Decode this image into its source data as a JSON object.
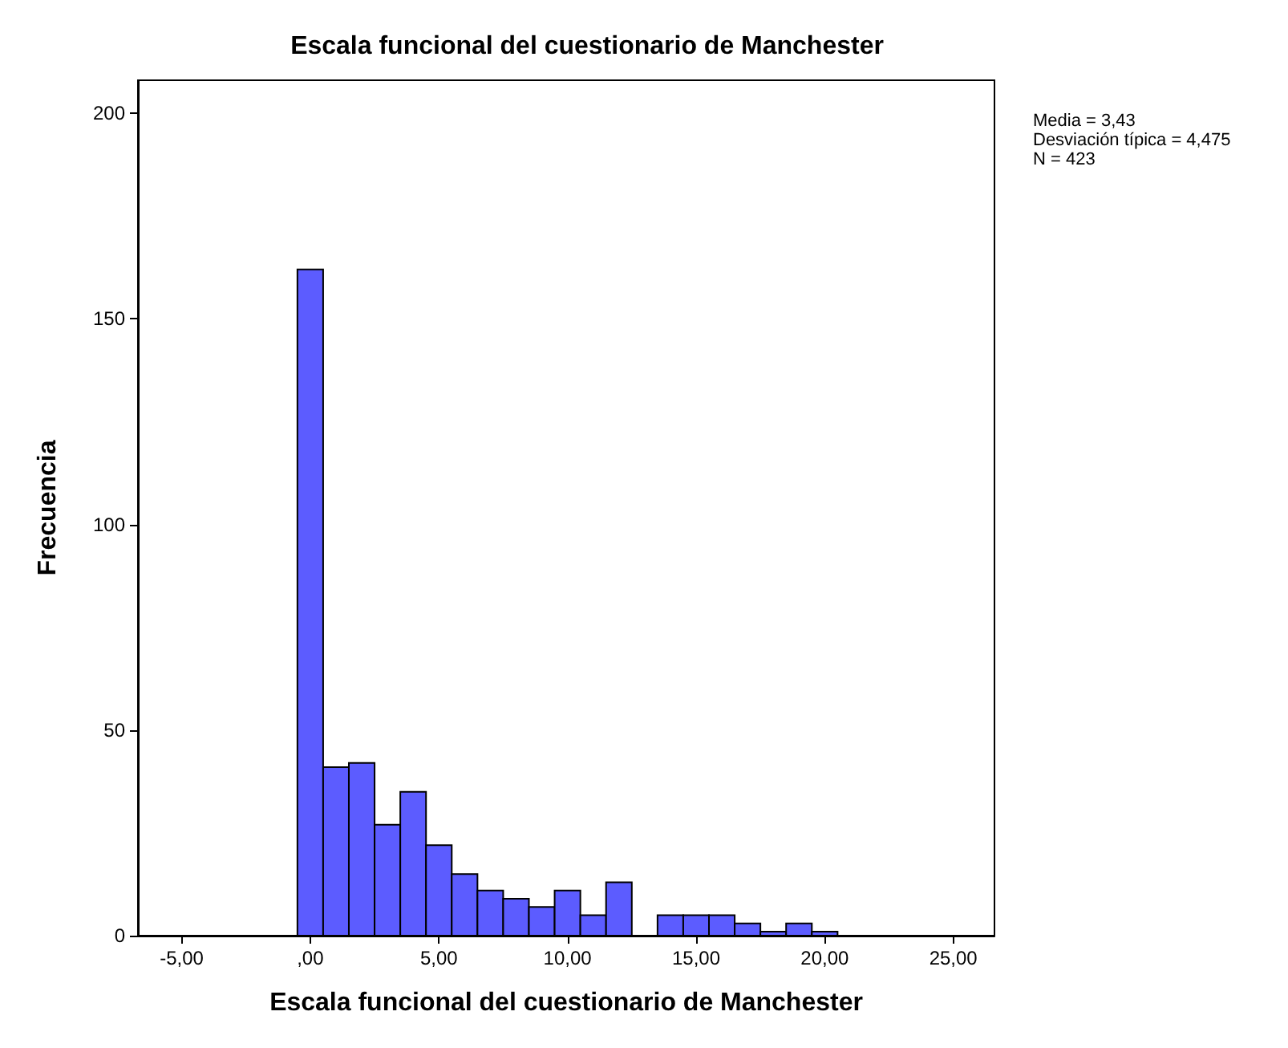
{
  "chart_data": {
    "type": "histogram",
    "title": "Escala funcional del cuestionario de Manchester",
    "xlabel": "Escala funcional del cuestionario de Manchester",
    "ylabel": "Frecuencia",
    "bins": [
      -0.5,
      0.5,
      1.5,
      2.5,
      3.5,
      4.5,
      5.5,
      6.5,
      7.5,
      8.5,
      9.5,
      10.5,
      11.5,
      12.5,
      13.5,
      14.5,
      15.5,
      16.5,
      17.5,
      18.5,
      19.5,
      20.5
    ],
    "values": [
      162,
      41,
      42,
      27,
      35,
      22,
      15,
      11,
      9,
      7,
      11,
      5,
      13,
      0,
      5,
      5,
      5,
      3,
      1,
      3,
      1
    ],
    "color": "#5c5cff",
    "xlim": [
      -6.7,
      26.6
    ],
    "xticks": [
      {
        "value": -5,
        "label": "-5,00"
      },
      {
        "value": 0,
        "label": ",00"
      },
      {
        "value": 5,
        "label": "5,00"
      },
      {
        "value": 10,
        "label": "10,00"
      },
      {
        "value": 15,
        "label": "15,00"
      },
      {
        "value": 20,
        "label": "20,00"
      },
      {
        "value": 25,
        "label": "25,00"
      }
    ],
    "ylim": [
      0,
      208
    ],
    "yticks": [
      0,
      50,
      100,
      150,
      200
    ],
    "grid": false,
    "annotations": [
      "Media = 3,43",
      "Desviación típica = 4,475",
      "N = 423"
    ]
  }
}
